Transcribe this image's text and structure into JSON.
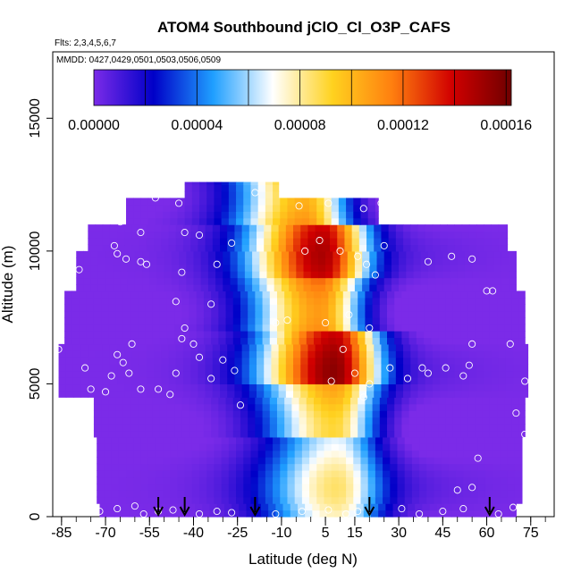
{
  "chart_data": {
    "type": "heatmap",
    "title": "ATOM4 Southbound jClO_Cl_O3P_CAFS",
    "flights_note": "Flts: 2,3,4,5,6,7",
    "dates_note": "MMDD: 0427,0429,0501,0503,0506,0509",
    "xlabel": "Latitude (deg N)",
    "ylabel": "Altitude (m)",
    "xlim": [
      -88,
      83
    ],
    "ylim": [
      0,
      17500
    ],
    "x_ticks": [
      -85,
      -70,
      -55,
      -40,
      -25,
      -10,
      5,
      15,
      30,
      45,
      60,
      75
    ],
    "x_tick_labels": [
      "-85",
      "-70",
      "-55",
      "-40",
      "-25",
      "-10",
      "5",
      "15",
      "30",
      "45",
      "60",
      "75"
    ],
    "y_ticks": [
      0,
      5000,
      10000,
      15000
    ],
    "y_tick_labels": [
      "0",
      "5000",
      "10000",
      "15000"
    ],
    "colorbar": {
      "min": 0,
      "max": 0.000162,
      "ticks": [
        0,
        4e-05,
        8e-05,
        0.00012,
        0.00016
      ],
      "tick_labels": [
        "0.00000",
        "0.00004",
        "0.00008",
        "0.00012",
        "0.00016"
      ],
      "colors": [
        "#7b2be8",
        "#0000c8",
        "#1f9fff",
        "#ffffff",
        "#ffd21f",
        "#ff7f0f",
        "#d10000",
        "#6f0000"
      ]
    },
    "profile_markers_lat": [
      -52,
      -43,
      -19,
      20,
      61
    ],
    "altitude_bins": [
      {
        "y0": 0,
        "y1": 500,
        "lat_min": -72,
        "lat_max": 70
      },
      {
        "y0": 500,
        "y1": 3000,
        "lat_min": -73,
        "lat_max": 72
      },
      {
        "y0": 3000,
        "y1": 4500,
        "lat_min": -74,
        "lat_max": 73
      },
      {
        "y0": 4500,
        "y1": 6500,
        "lat_min": -86,
        "lat_max": 74
      },
      {
        "y0": 6500,
        "y1": 8500,
        "lat_min": -84,
        "lat_max": 73
      },
      {
        "y0": 8500,
        "y1": 10000,
        "lat_min": -80,
        "lat_max": 70
      },
      {
        "y0": 10000,
        "y1": 11000,
        "lat_min": -76,
        "lat_max": 67
      },
      {
        "y0": 11000,
        "y1": 12000,
        "lat_min": -63,
        "lat_max": 23
      },
      {
        "y0": 12000,
        "y1": 12600,
        "lat_min": -43,
        "lat_max": -11
      }
    ],
    "cores": [
      {
        "y0": 0,
        "y1": 3000,
        "center": 9,
        "value": 7.5e-05
      },
      {
        "y0": 3000,
        "y1": 5000,
        "center": 8,
        "value": 0.0001
      },
      {
        "y0": 5000,
        "y1": 7000,
        "center": 8,
        "value": 0.000145
      },
      {
        "y0": 7000,
        "y1": 9000,
        "center": 3,
        "value": 0.000118
      },
      {
        "y0": 9000,
        "y1": 11000,
        "center": 4,
        "value": 0.000138
      },
      {
        "y0": 11000,
        "y1": 12600,
        "center": -2,
        "value": 0.000112
      }
    ],
    "observations": [
      {
        "lat": -86,
        "alt": 6300
      },
      {
        "lat": -77,
        "alt": 5600
      },
      {
        "lat": -75,
        "alt": 4800
      },
      {
        "lat": -82,
        "alt": 9600
      },
      {
        "lat": -79,
        "alt": 9300
      },
      {
        "lat": -67,
        "alt": 10200
      },
      {
        "lat": -66,
        "alt": 9900
      },
      {
        "lat": -63,
        "alt": 9700
      },
      {
        "lat": -58,
        "alt": 9600
      },
      {
        "lat": -56,
        "alt": 9500
      },
      {
        "lat": -61,
        "alt": 6500
      },
      {
        "lat": -64,
        "alt": 5800
      },
      {
        "lat": -66,
        "alt": 6100
      },
      {
        "lat": -68,
        "alt": 5300
      },
      {
        "lat": -70,
        "alt": 4700
      },
      {
        "lat": -62,
        "alt": 5400
      },
      {
        "lat": -58,
        "alt": 4800
      },
      {
        "lat": -52,
        "alt": 4800
      },
      {
        "lat": -48,
        "alt": 4600
      },
      {
        "lat": -46,
        "alt": 5400
      },
      {
        "lat": -44,
        "alt": 6700
      },
      {
        "lat": -40,
        "alt": 6500
      },
      {
        "lat": -38,
        "alt": 6000
      },
      {
        "lat": -30,
        "alt": 5900
      },
      {
        "lat": -26,
        "alt": 5500
      },
      {
        "lat": -34,
        "alt": 5200
      },
      {
        "lat": -24,
        "alt": 4200
      },
      {
        "lat": -46,
        "alt": 8100
      },
      {
        "lat": -43,
        "alt": 7100
      },
      {
        "lat": -34,
        "alt": 8000
      },
      {
        "lat": -44,
        "alt": 9200
      },
      {
        "lat": -32,
        "alt": 9500
      },
      {
        "lat": -27,
        "alt": 10300
      },
      {
        "lat": -43,
        "alt": 10700
      },
      {
        "lat": -38,
        "alt": 10600
      },
      {
        "lat": -58,
        "alt": 10700
      },
      {
        "lat": -65,
        "alt": 11100
      },
      {
        "lat": -53,
        "alt": 12000
      },
      {
        "lat": -45,
        "alt": 11800
      },
      {
        "lat": -19,
        "alt": 12200
      },
      {
        "lat": -4,
        "alt": 11700
      },
      {
        "lat": 6,
        "alt": 11800
      },
      {
        "lat": 18,
        "alt": 11600
      },
      {
        "lat": 24,
        "alt": 11800
      },
      {
        "lat": 3,
        "alt": 10400
      },
      {
        "lat": 10,
        "alt": 10000
      },
      {
        "lat": 19,
        "alt": 9500
      },
      {
        "lat": 25,
        "alt": 10200
      },
      {
        "lat": 16,
        "alt": 9800
      },
      {
        "lat": 22,
        "alt": 9100
      },
      {
        "lat": 40,
        "alt": 9600
      },
      {
        "lat": 48,
        "alt": 9800
      },
      {
        "lat": 55,
        "alt": 9700
      },
      {
        "lat": 60,
        "alt": 8500
      },
      {
        "lat": 62,
        "alt": 8500
      },
      {
        "lat": 55,
        "alt": 6500
      },
      {
        "lat": 68,
        "alt": 6500
      },
      {
        "lat": 73,
        "alt": 5100
      },
      {
        "lat": 70,
        "alt": 3900
      },
      {
        "lat": 73,
        "alt": 3100
      },
      {
        "lat": 57,
        "alt": 2200
      },
      {
        "lat": 55,
        "alt": 1100
      },
      {
        "lat": 50,
        "alt": 1000
      },
      {
        "lat": 40,
        "alt": 5400
      },
      {
        "lat": 38,
        "alt": 5600
      },
      {
        "lat": 33,
        "alt": 5200
      },
      {
        "lat": 27,
        "alt": 5600
      },
      {
        "lat": 46,
        "alt": 5600
      },
      {
        "lat": 52,
        "alt": 5300
      },
      {
        "lat": 54,
        "alt": 5700
      },
      {
        "lat": 11,
        "alt": 6300
      },
      {
        "lat": 5,
        "alt": 7300
      },
      {
        "lat": 13,
        "alt": 7600
      },
      {
        "lat": 7,
        "alt": 5100
      },
      {
        "lat": 15,
        "alt": 5400
      },
      {
        "lat": 20,
        "alt": 5000
      },
      {
        "lat": 18,
        "alt": 4500
      },
      {
        "lat": 20,
        "alt": 7100
      },
      {
        "lat": -8,
        "alt": 7400
      },
      {
        "lat": -12,
        "alt": 7300
      },
      {
        "lat": -2,
        "alt": 10000
      },
      {
        "lat": -72,
        "alt": 200
      },
      {
        "lat": -66,
        "alt": 300
      },
      {
        "lat": -60,
        "alt": 400
      },
      {
        "lat": -57,
        "alt": 100
      },
      {
        "lat": -52,
        "alt": 200
      },
      {
        "lat": -47,
        "alt": 250
      },
      {
        "lat": -38,
        "alt": 100
      },
      {
        "lat": -32,
        "alt": 200
      },
      {
        "lat": -27,
        "alt": 150
      },
      {
        "lat": -12,
        "alt": 100
      },
      {
        "lat": -3,
        "alt": 200
      },
      {
        "lat": 6,
        "alt": 250
      },
      {
        "lat": 12,
        "alt": 100
      },
      {
        "lat": 16,
        "alt": 200
      },
      {
        "lat": 31,
        "alt": 300
      },
      {
        "lat": 37,
        "alt": 100
      },
      {
        "lat": 45,
        "alt": 200
      },
      {
        "lat": 52,
        "alt": 300
      },
      {
        "lat": 64,
        "alt": 100
      },
      {
        "lat": 69,
        "alt": 350
      }
    ]
  }
}
